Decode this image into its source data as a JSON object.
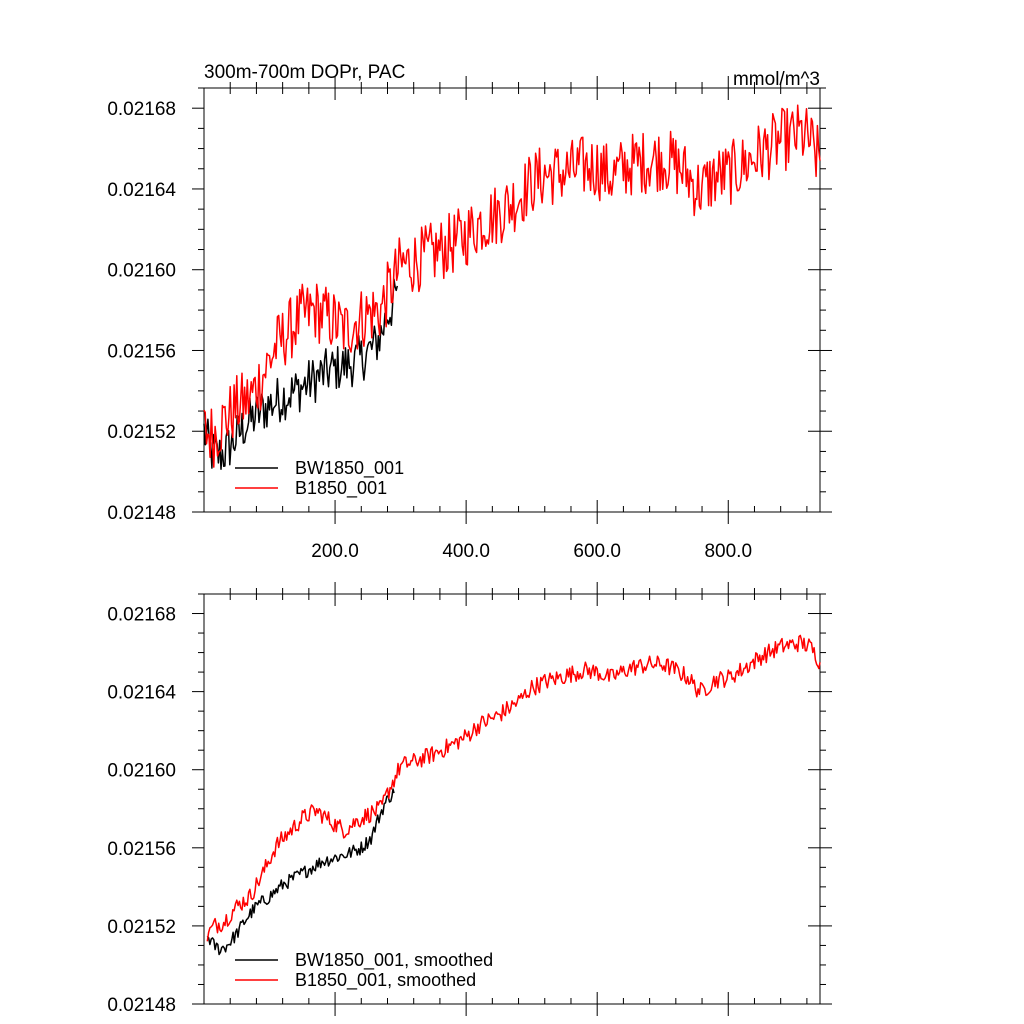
{
  "chart_data": [
    {
      "type": "line",
      "title_left": "300m-700m DOPr, PAC",
      "title_right": "mmol/m^3",
      "xlabel": "",
      "ylabel": "",
      "xlim": [
        0,
        940
      ],
      "ylim": [
        0.02148,
        0.02169
      ],
      "xticks": [
        200,
        400,
        600,
        800
      ],
      "xtick_labels": [
        "200.0",
        "400.0",
        "600.0",
        "800.0"
      ],
      "yticks": [
        0.02148,
        0.02152,
        0.02156,
        0.0216,
        0.02164,
        0.02168
      ],
      "ytick_labels": [
        "0.02148",
        "0.02152",
        "0.02156",
        "0.02160",
        "0.02164",
        "0.02168"
      ],
      "legend_position": "bottom-left",
      "series": [
        {
          "name": "BW1850_001",
          "color": "#000000",
          "noise": 1.2e-05,
          "x": [
            0,
            10,
            20,
            30,
            45,
            60,
            80,
            100,
            120,
            140,
            160,
            180,
            200,
            220,
            240,
            260,
            270,
            280,
            290,
            295
          ],
          "y": [
            0.02152,
            0.02151,
            0.021508,
            0.021509,
            0.021515,
            0.021522,
            0.021528,
            0.021533,
            0.021537,
            0.02154,
            0.021544,
            0.021548,
            0.021551,
            0.021553,
            0.021556,
            0.021562,
            0.021568,
            0.021578,
            0.021584,
            0.021592
          ]
        },
        {
          "name": "B1850_001",
          "color": "#ff0000",
          "noise": 1.6e-05,
          "x": [
            0,
            15,
            30,
            50,
            70,
            90,
            110,
            130,
            150,
            170,
            180,
            200,
            215,
            230,
            250,
            270,
            280,
            300,
            320,
            350,
            380,
            400,
            420,
            450,
            480,
            500,
            520,
            550,
            580,
            600,
            620,
            650,
            680,
            700,
            720,
            740,
            750,
            760,
            780,
            800,
            820,
            850,
            880,
            910,
            925,
            930,
            940
          ],
          "y": [
            0.02152,
            0.021518,
            0.021525,
            0.021532,
            0.021536,
            0.021548,
            0.021562,
            0.02157,
            0.021577,
            0.02158,
            0.021578,
            0.021574,
            0.02157,
            0.021574,
            0.021578,
            0.02158,
            0.021588,
            0.021602,
            0.021604,
            0.021608,
            0.021613,
            0.021617,
            0.021623,
            0.021628,
            0.021636,
            0.021643,
            0.021647,
            0.021648,
            0.021651,
            0.021651,
            0.021646,
            0.021652,
            0.021654,
            0.021655,
            0.021652,
            0.021646,
            0.021641,
            0.02164,
            0.021646,
            0.021647,
            0.021651,
            0.021658,
            0.021664,
            0.021667,
            0.021664,
            0.021659,
            0.021654
          ]
        }
      ]
    },
    {
      "type": "line",
      "title_left": "",
      "title_right": "",
      "xlabel": "",
      "ylabel": "",
      "xlim": [
        0,
        940
      ],
      "ylim": [
        0.02148,
        0.02169
      ],
      "xticks": [
        200,
        400,
        600,
        800
      ],
      "xtick_labels": [],
      "yticks": [
        0.02148,
        0.02152,
        0.02156,
        0.0216,
        0.02164,
        0.02168
      ],
      "ytick_labels": [
        "0.02148",
        "0.02152",
        "0.02156",
        "0.02160",
        "0.02164",
        "0.02168"
      ],
      "legend_position": "bottom-left",
      "series": [
        {
          "name": "BW1850_001, smoothed",
          "color": "#000000",
          "noise": 3.5e-06,
          "x": [
            5,
            15,
            25,
            35,
            50,
            65,
            80,
            100,
            120,
            140,
            160,
            180,
            200,
            220,
            240,
            255,
            265,
            275,
            285,
            290
          ],
          "y": [
            0.021515,
            0.02151,
            0.021508,
            0.02151,
            0.021516,
            0.021524,
            0.02153,
            0.021535,
            0.021541,
            0.021545,
            0.021549,
            0.021553,
            0.021555,
            0.021557,
            0.02156,
            0.021565,
            0.021574,
            0.021582,
            0.021587,
            0.021588
          ]
        },
        {
          "name": "B1850_001, smoothed",
          "color": "#ff0000",
          "noise": 4.5e-06,
          "x": [
            5,
            15,
            30,
            50,
            70,
            90,
            110,
            130,
            150,
            170,
            180,
            200,
            215,
            230,
            250,
            270,
            280,
            300,
            320,
            350,
            380,
            400,
            420,
            450,
            480,
            500,
            520,
            550,
            580,
            600,
            620,
            650,
            680,
            700,
            720,
            740,
            750,
            760,
            780,
            800,
            820,
            850,
            880,
            910,
            925,
            935,
            940
          ],
          "y": [
            0.021515,
            0.02152,
            0.021522,
            0.02153,
            0.021535,
            0.021547,
            0.021561,
            0.021568,
            0.021575,
            0.021579,
            0.021577,
            0.021572,
            0.021569,
            0.021573,
            0.021577,
            0.02158,
            0.021588,
            0.021602,
            0.021604,
            0.021608,
            0.021613,
            0.021617,
            0.021623,
            0.021628,
            0.021635,
            0.021642,
            0.021645,
            0.021648,
            0.021651,
            0.02165,
            0.021647,
            0.021652,
            0.021654,
            0.021654,
            0.021651,
            0.021647,
            0.021642,
            0.02164,
            0.021646,
            0.021647,
            0.021651,
            0.021658,
            0.021663,
            0.021665,
            0.021663,
            0.021658,
            0.021655
          ]
        }
      ]
    }
  ]
}
